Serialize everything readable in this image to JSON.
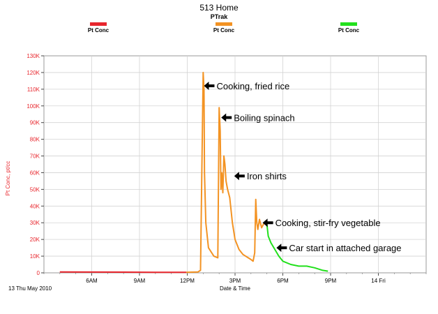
{
  "chart_data": {
    "type": "line",
    "title": "513 Home",
    "subtitle": "PTrak",
    "xlabel": "Date & Time",
    "ylabel": "Pt Conc, pt/cc",
    "date_label": "13 Thu May 2010",
    "x_ticks": [
      "6AM",
      "9AM",
      "12PM",
      "3PM",
      "6PM",
      "9PM",
      "14 Fri"
    ],
    "y_ticks": [
      "0",
      "10K",
      "20K",
      "30K",
      "40K",
      "50K",
      "60K",
      "70K",
      "80K",
      "90K",
      "100K",
      "110K",
      "120K",
      "130K"
    ],
    "xlim": [
      "2010-05-13 03:00",
      "2010-05-14 03:00"
    ],
    "ylim": [
      0,
      130000
    ],
    "grid": true,
    "series": [
      {
        "name": "Pt Conc",
        "color": "#e8262d",
        "points": [
          [
            "04:00",
            500
          ],
          [
            "06:00",
            450
          ],
          [
            "08:00",
            400
          ],
          [
            "10:00",
            350
          ],
          [
            "11:56",
            350
          ]
        ]
      },
      {
        "name": "Pt Conc",
        "color": "#f39323",
        "points": [
          [
            "11:56",
            300
          ],
          [
            "12:40",
            500
          ],
          [
            "12:50",
            1500
          ],
          [
            "13:00",
            120000
          ],
          [
            "13:03",
            110000
          ],
          [
            "13:05",
            60000
          ],
          [
            "13:10",
            30000
          ],
          [
            "13:20",
            15000
          ],
          [
            "13:40",
            10000
          ],
          [
            "13:55",
            9000
          ],
          [
            "14:00",
            99000
          ],
          [
            "14:04",
            85000
          ],
          [
            "14:07",
            50000
          ],
          [
            "14:10",
            60000
          ],
          [
            "14:14",
            48000
          ],
          [
            "14:18",
            70000
          ],
          [
            "14:22",
            65000
          ],
          [
            "14:26",
            55000
          ],
          [
            "14:32",
            50000
          ],
          [
            "14:40",
            45000
          ],
          [
            "14:50",
            30000
          ],
          [
            "15:00",
            20000
          ],
          [
            "15:15",
            14000
          ],
          [
            "15:30",
            11000
          ],
          [
            "15:50",
            9000
          ],
          [
            "16:00",
            8000
          ],
          [
            "16:08",
            7000
          ],
          [
            "16:14",
            12000
          ],
          [
            "16:18",
            44000
          ],
          [
            "16:22",
            30000
          ],
          [
            "16:26",
            26000
          ],
          [
            "16:32",
            32000
          ],
          [
            "16:40",
            27000
          ],
          [
            "16:50",
            30000
          ],
          [
            "17:00",
            29000
          ]
        ]
      },
      {
        "name": "Pt Conc",
        "color": "#22e01c",
        "points": [
          [
            "17:00",
            29000
          ],
          [
            "17:05",
            22000
          ],
          [
            "17:15",
            18000
          ],
          [
            "17:30",
            14000
          ],
          [
            "17:45",
            10000
          ],
          [
            "18:00",
            7000
          ],
          [
            "18:30",
            5000
          ],
          [
            "19:00",
            4000
          ],
          [
            "19:30",
            4000
          ],
          [
            "20:00",
            3000
          ],
          [
            "20:30",
            1500
          ],
          [
            "20:50",
            1000
          ]
        ]
      }
    ],
    "annotations": [
      {
        "text": "Cooking, fried rice",
        "x": "13:03",
        "y": 112000
      },
      {
        "text": "Boiling spinach",
        "x": "14:08",
        "y": 93000
      },
      {
        "text": "Iron shirts",
        "x": "14:57",
        "y": 58000
      },
      {
        "text": "Cooking, stir-fry vegetable",
        "x": "16:44",
        "y": 30000
      },
      {
        "text": "Car start in attached garage",
        "x": "17:36",
        "y": 15000
      }
    ]
  }
}
